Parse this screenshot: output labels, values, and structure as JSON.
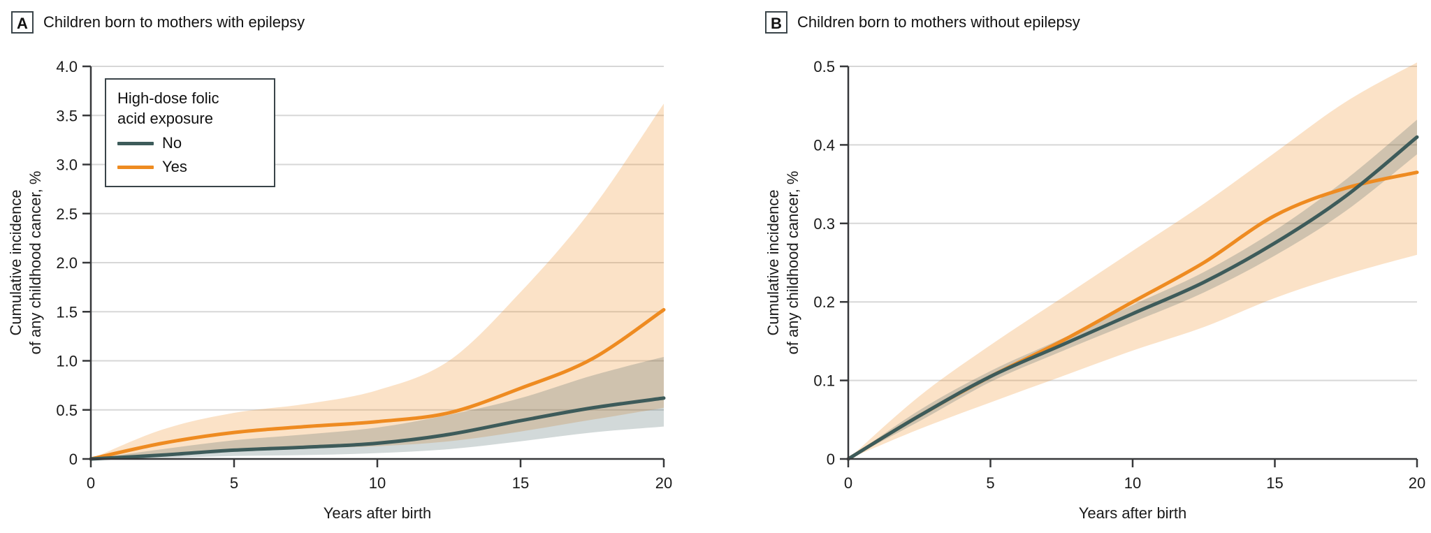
{
  "figure": {
    "background": "#ffffff",
    "axis_color": "#37383a",
    "grid_color": "#d7d7d7"
  },
  "chart_data": [
    {
      "type": "line",
      "panel_label": "A",
      "title": "Children born to mothers with epilepsy",
      "xlabel": "Years after birth",
      "ylabel_line1": "Cumulative incidence",
      "ylabel_line2": "of any childhood cancer, %",
      "xlim": [
        0,
        20
      ],
      "ylim": [
        0,
        4.0
      ],
      "xticks": [
        0,
        5,
        10,
        15,
        20
      ],
      "yticks": [
        0,
        0.5,
        1.0,
        1.5,
        2.0,
        2.5,
        3.0,
        3.5,
        4.0
      ],
      "ytick_labels": [
        "0",
        "0.5",
        "1.0",
        "1.5",
        "2.0",
        "2.5",
        "3.0",
        "3.5",
        "4.0"
      ],
      "grid": "horizontal",
      "legend_position": "upper-left-inside",
      "legend": {
        "title_line1": "High-dose folic",
        "title_line2": "acid exposure"
      },
      "x": [
        0,
        2.5,
        5,
        7.5,
        10,
        12.5,
        15,
        17.5,
        20
      ],
      "series": [
        {
          "name": "No",
          "color": "#3d5b5a",
          "band_opacity": 0.23,
          "values": [
            0,
            0.04,
            0.09,
            0.12,
            0.16,
            0.25,
            0.39,
            0.52,
            0.62
          ],
          "upper": [
            0,
            0.1,
            0.19,
            0.25,
            0.32,
            0.45,
            0.62,
            0.85,
            1.04
          ],
          "lower": [
            0,
            0.01,
            0.03,
            0.04,
            0.06,
            0.1,
            0.18,
            0.27,
            0.33
          ]
        },
        {
          "name": "Yes",
          "color": "#ee8b21",
          "band_opacity": 0.25,
          "values": [
            0,
            0.16,
            0.27,
            0.33,
            0.38,
            0.47,
            0.72,
            1.02,
            1.52
          ],
          "upper": [
            0,
            0.3,
            0.47,
            0.56,
            0.7,
            1.0,
            1.7,
            2.55,
            3.62
          ],
          "lower": [
            0,
            0.05,
            0.09,
            0.11,
            0.13,
            0.18,
            0.28,
            0.4,
            0.52
          ]
        }
      ]
    },
    {
      "type": "line",
      "panel_label": "B",
      "title": "Children born to mothers without epilepsy",
      "xlabel": "Years after birth",
      "ylabel_line1": "Cumulative incidence",
      "ylabel_line2": "of any childhood cancer, %",
      "xlim": [
        0,
        20
      ],
      "ylim": [
        0,
        0.5
      ],
      "xticks": [
        0,
        5,
        10,
        15,
        20
      ],
      "yticks": [
        0,
        0.1,
        0.2,
        0.3,
        0.4,
        0.5
      ],
      "ytick_labels": [
        "0",
        "0.1",
        "0.2",
        "0.3",
        "0.4",
        "0.5"
      ],
      "grid": "horizontal",
      "legend_position": "none",
      "x": [
        0,
        2.5,
        5,
        7.5,
        10,
        12.5,
        15,
        17.5,
        20
      ],
      "series": [
        {
          "name": "No",
          "color": "#3d5b5a",
          "band_opacity": 0.23,
          "values": [
            0,
            0.055,
            0.105,
            0.145,
            0.185,
            0.225,
            0.275,
            0.335,
            0.41
          ],
          "upper": [
            0,
            0.062,
            0.112,
            0.153,
            0.196,
            0.238,
            0.291,
            0.356,
            0.432
          ],
          "lower": [
            0,
            0.048,
            0.098,
            0.137,
            0.174,
            0.212,
            0.259,
            0.316,
            0.388
          ]
        },
        {
          "name": "Yes",
          "color": "#ee8b21",
          "band_opacity": 0.25,
          "values": [
            0,
            0.055,
            0.105,
            0.15,
            0.2,
            0.25,
            0.31,
            0.345,
            0.365
          ],
          "upper": [
            0,
            0.08,
            0.145,
            0.205,
            0.265,
            0.325,
            0.39,
            0.455,
            0.505
          ],
          "lower": [
            0,
            0.038,
            0.072,
            0.105,
            0.138,
            0.168,
            0.205,
            0.235,
            0.26
          ]
        }
      ]
    }
  ]
}
